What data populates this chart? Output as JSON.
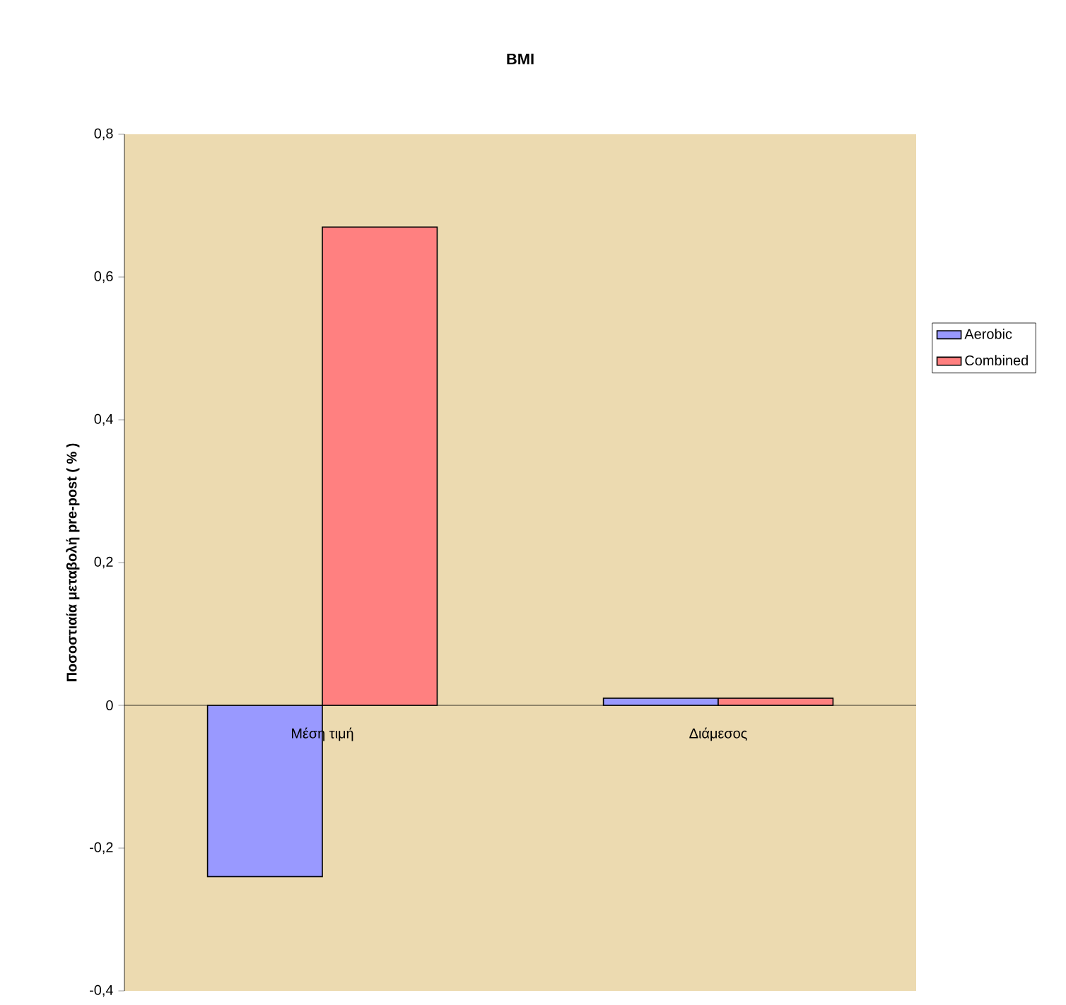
{
  "chart_data": {
    "type": "bar",
    "title": "BMI",
    "ylabel": "Ποσοστιαία μεταβολή pre-post ( % )",
    "categories": [
      "Μέση τιμή",
      "Διάμεσος"
    ],
    "series": [
      {
        "name": "Aerobic",
        "color": "#9999ff",
        "values": [
          -0.24,
          0.01
        ]
      },
      {
        "name": "Combined",
        "color": "#ff8080",
        "values": [
          0.67,
          0.01
        ]
      }
    ],
    "ylim": [
      -0.4,
      0.8
    ],
    "yticks": [
      {
        "value": -0.4,
        "label": "-0,4"
      },
      {
        "value": -0.2,
        "label": "-0,2"
      },
      {
        "value": 0,
        "label": "0"
      },
      {
        "value": 0.2,
        "label": "0,2"
      },
      {
        "value": 0.4,
        "label": "0,4"
      },
      {
        "value": 0.6,
        "label": "0,6"
      },
      {
        "value": 0.8,
        "label": "0,8"
      }
    ],
    "grid": false,
    "legend": "right"
  }
}
